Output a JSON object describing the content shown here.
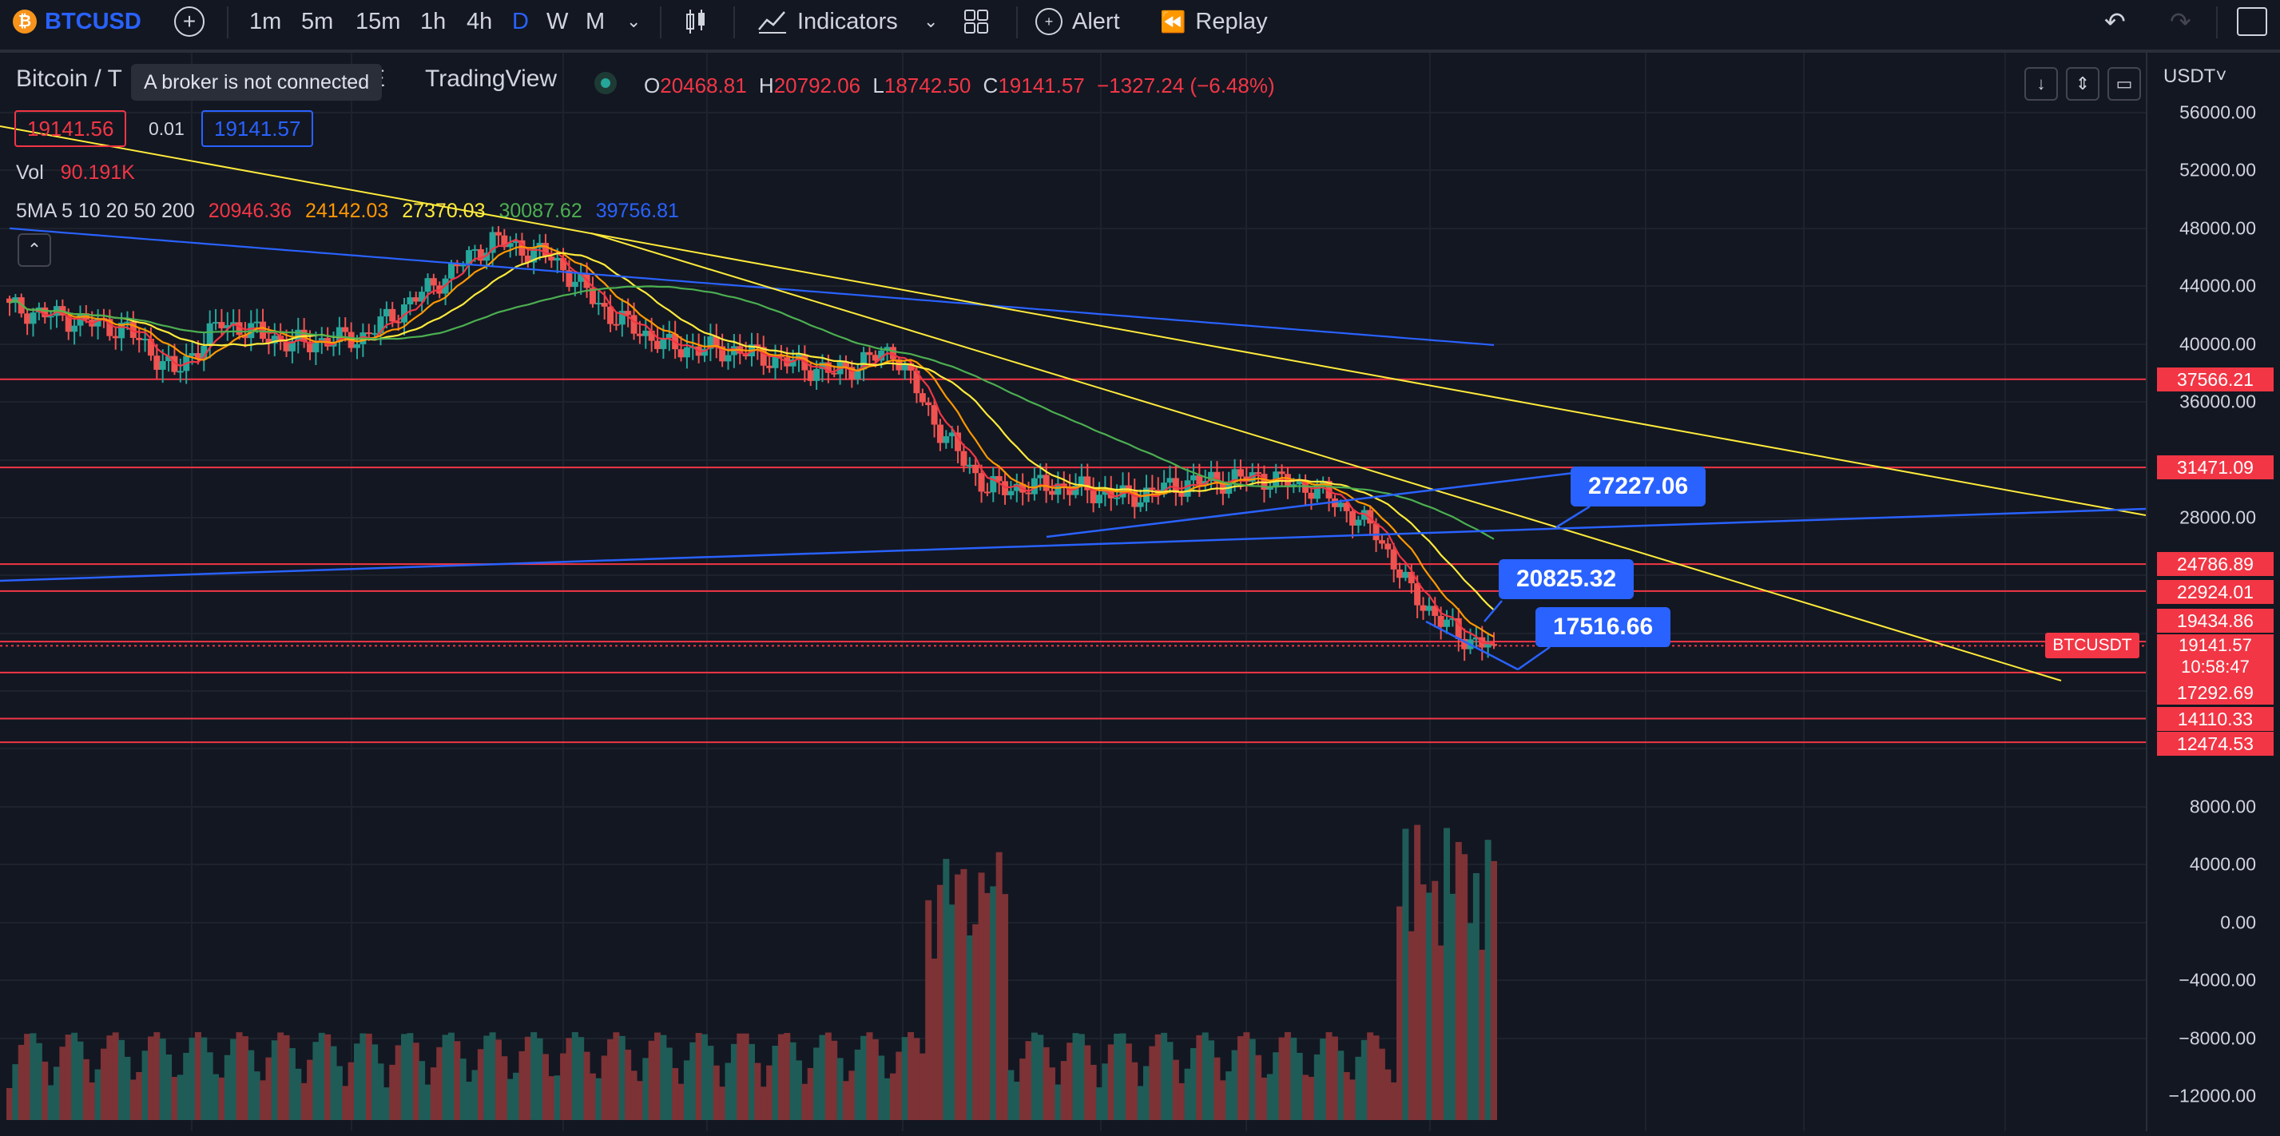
{
  "toolbar": {
    "symbol": "BTCUSD",
    "intervals": [
      "1m",
      "5m",
      "15m",
      "1h",
      "4h",
      "D",
      "W",
      "M"
    ],
    "active_interval": "D",
    "indicators_label": "Indicators",
    "alert_label": "Alert",
    "replay_label": "Replay"
  },
  "legend": {
    "title_pre": "Bitcoin / T",
    "title_post": "E",
    "source": "TradingView",
    "tooltip": "A broker is not connected",
    "o_label": "O",
    "o": "20468.81",
    "h_label": "H",
    "h": "20792.06",
    "l_label": "L",
    "l": "18742.50",
    "c_label": "C",
    "c": "19141.57",
    "change": "−1327.24 (−6.48%)",
    "sell_price": "19141.56",
    "spread": "0.01",
    "buy_price": "19141.57",
    "vol_label": "Vol",
    "vol_value": "90.191K",
    "ma_label": "5MA 5 10 20 50 200",
    "ma_values": [
      "20946.36",
      "24142.03",
      "27370.03",
      "30087.62",
      "39756.81"
    ],
    "ma_colors": [
      "#f23645",
      "#ff9800",
      "#ffeb3b",
      "#4caf50",
      "#2962ff"
    ]
  },
  "axis": {
    "currency": "USDT˅",
    "ticks": [
      "56000.00",
      "52000.00",
      "48000.00",
      "44000.00",
      "40000.00",
      "36000.00",
      "28000.00",
      "8000.00",
      "4000.00",
      "0.00",
      "−4000.00",
      "−8000.00",
      "−12000.00"
    ],
    "hlines": [
      "37566.21",
      "31471.09",
      "24786.89",
      "22924.01",
      "19434.86",
      "17292.69",
      "14110.33",
      "12474.53"
    ],
    "current_symbol": "BTCUSDT",
    "current_price": "19141.57",
    "countdown": "10:58:47"
  },
  "callouts": [
    "27227.06",
    "20825.32",
    "17516.66"
  ],
  "colors": {
    "bg": "#131722",
    "up": "#26a69a",
    "down": "#ef5350",
    "hline": "#f23645",
    "trend_yellow": "#ffeb3b",
    "trend_blue": "#2962ff"
  }
}
